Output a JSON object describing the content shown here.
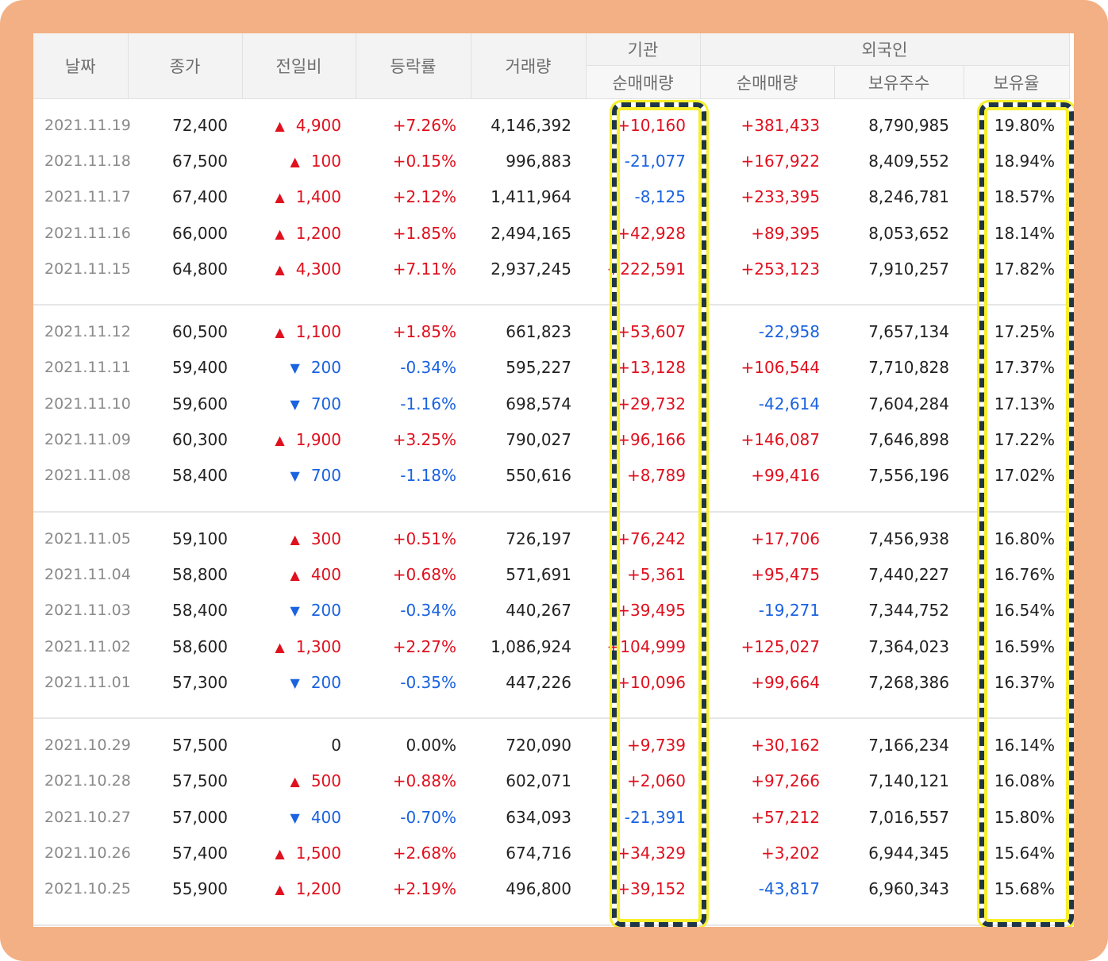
{
  "headers": {
    "date": "날짜",
    "close": "종가",
    "change": "전일비",
    "rate": "등락률",
    "volume": "거래량",
    "institution": "기관",
    "foreign": "외국인",
    "inst_net": "순매매량",
    "for_net": "순매매량",
    "holdings": "보유주수",
    "hold_ratio": "보유율"
  },
  "groups": [
    [
      {
        "date": "2021.11.19",
        "close": "72,400",
        "change": "4,900",
        "dir": "up",
        "rate": "+7.26%",
        "volume": "4,146,392",
        "inst": "+10,160",
        "foreign": "+381,433",
        "holdings": "8,790,985",
        "ratio": "19.80%"
      },
      {
        "date": "2021.11.18",
        "close": "67,500",
        "change": "100",
        "dir": "up",
        "rate": "+0.15%",
        "volume": "996,883",
        "inst": "-21,077",
        "foreign": "+167,922",
        "holdings": "8,409,552",
        "ratio": "18.94%"
      },
      {
        "date": "2021.11.17",
        "close": "67,400",
        "change": "1,400",
        "dir": "up",
        "rate": "+2.12%",
        "volume": "1,411,964",
        "inst": "-8,125",
        "foreign": "+233,395",
        "holdings": "8,246,781",
        "ratio": "18.57%"
      },
      {
        "date": "2021.11.16",
        "close": "66,000",
        "change": "1,200",
        "dir": "up",
        "rate": "+1.85%",
        "volume": "2,494,165",
        "inst": "+42,928",
        "foreign": "+89,395",
        "holdings": "8,053,652",
        "ratio": "18.14%"
      },
      {
        "date": "2021.11.15",
        "close": "64,800",
        "change": "4,300",
        "dir": "up",
        "rate": "+7.11%",
        "volume": "2,937,245",
        "inst": "+222,591",
        "foreign": "+253,123",
        "holdings": "7,910,257",
        "ratio": "17.82%"
      }
    ],
    [
      {
        "date": "2021.11.12",
        "close": "60,500",
        "change": "1,100",
        "dir": "up",
        "rate": "+1.85%",
        "volume": "661,823",
        "inst": "+53,607",
        "foreign": "-22,958",
        "holdings": "7,657,134",
        "ratio": "17.25%"
      },
      {
        "date": "2021.11.11",
        "close": "59,400",
        "change": "200",
        "dir": "down",
        "rate": "-0.34%",
        "volume": "595,227",
        "inst": "+13,128",
        "foreign": "+106,544",
        "holdings": "7,710,828",
        "ratio": "17.37%"
      },
      {
        "date": "2021.11.10",
        "close": "59,600",
        "change": "700",
        "dir": "down",
        "rate": "-1.16%",
        "volume": "698,574",
        "inst": "+29,732",
        "foreign": "-42,614",
        "holdings": "7,604,284",
        "ratio": "17.13%"
      },
      {
        "date": "2021.11.09",
        "close": "60,300",
        "change": "1,900",
        "dir": "up",
        "rate": "+3.25%",
        "volume": "790,027",
        "inst": "+96,166",
        "foreign": "+146,087",
        "holdings": "7,646,898",
        "ratio": "17.22%"
      },
      {
        "date": "2021.11.08",
        "close": "58,400",
        "change": "700",
        "dir": "down",
        "rate": "-1.18%",
        "volume": "550,616",
        "inst": "+8,789",
        "foreign": "+99,416",
        "holdings": "7,556,196",
        "ratio": "17.02%"
      }
    ],
    [
      {
        "date": "2021.11.05",
        "close": "59,100",
        "change": "300",
        "dir": "up",
        "rate": "+0.51%",
        "volume": "726,197",
        "inst": "+76,242",
        "foreign": "+17,706",
        "holdings": "7,456,938",
        "ratio": "16.80%"
      },
      {
        "date": "2021.11.04",
        "close": "58,800",
        "change": "400",
        "dir": "up",
        "rate": "+0.68%",
        "volume": "571,691",
        "inst": "+5,361",
        "foreign": "+95,475",
        "holdings": "7,440,227",
        "ratio": "16.76%"
      },
      {
        "date": "2021.11.03",
        "close": "58,400",
        "change": "200",
        "dir": "down",
        "rate": "-0.34%",
        "volume": "440,267",
        "inst": "+39,495",
        "foreign": "-19,271",
        "holdings": "7,344,752",
        "ratio": "16.54%"
      },
      {
        "date": "2021.11.02",
        "close": "58,600",
        "change": "1,300",
        "dir": "up",
        "rate": "+2.27%",
        "volume": "1,086,924",
        "inst": "+104,999",
        "foreign": "+125,027",
        "holdings": "7,364,023",
        "ratio": "16.59%"
      },
      {
        "date": "2021.11.01",
        "close": "57,300",
        "change": "200",
        "dir": "down",
        "rate": "-0.35%",
        "volume": "447,226",
        "inst": "+10,096",
        "foreign": "+99,664",
        "holdings": "7,268,386",
        "ratio": "16.37%"
      }
    ],
    [
      {
        "date": "2021.10.29",
        "close": "57,500",
        "change": "0",
        "dir": "flat",
        "rate": "0.00%",
        "volume": "720,090",
        "inst": "+9,739",
        "foreign": "+30,162",
        "holdings": "7,166,234",
        "ratio": "16.14%"
      },
      {
        "date": "2021.10.28",
        "close": "57,500",
        "change": "500",
        "dir": "up",
        "rate": "+0.88%",
        "volume": "602,071",
        "inst": "+2,060",
        "foreign": "+97,266",
        "holdings": "7,140,121",
        "ratio": "16.08%"
      },
      {
        "date": "2021.10.27",
        "close": "57,000",
        "change": "400",
        "dir": "down",
        "rate": "-0.70%",
        "volume": "634,093",
        "inst": "-21,391",
        "foreign": "+57,212",
        "holdings": "7,016,557",
        "ratio": "15.80%"
      },
      {
        "date": "2021.10.26",
        "close": "57,400",
        "change": "1,500",
        "dir": "up",
        "rate": "+2.68%",
        "volume": "674,716",
        "inst": "+34,329",
        "foreign": "+3,202",
        "holdings": "6,944,345",
        "ratio": "15.64%"
      },
      {
        "date": "2021.10.25",
        "close": "55,900",
        "change": "1,200",
        "dir": "up",
        "rate": "+2.19%",
        "volume": "496,800",
        "inst": "+39,152",
        "foreign": "-43,817",
        "holdings": "6,960,343",
        "ratio": "15.68%"
      }
    ]
  ],
  "colors": {
    "up": "#e0101e",
    "down": "#1a62e0",
    "frame": "#f2b084",
    "highlight_dash": "#1f3548",
    "highlight_glow": "#f7ef2b"
  },
  "icons": {
    "up": "up-triangle-icon",
    "down": "down-triangle-icon"
  }
}
